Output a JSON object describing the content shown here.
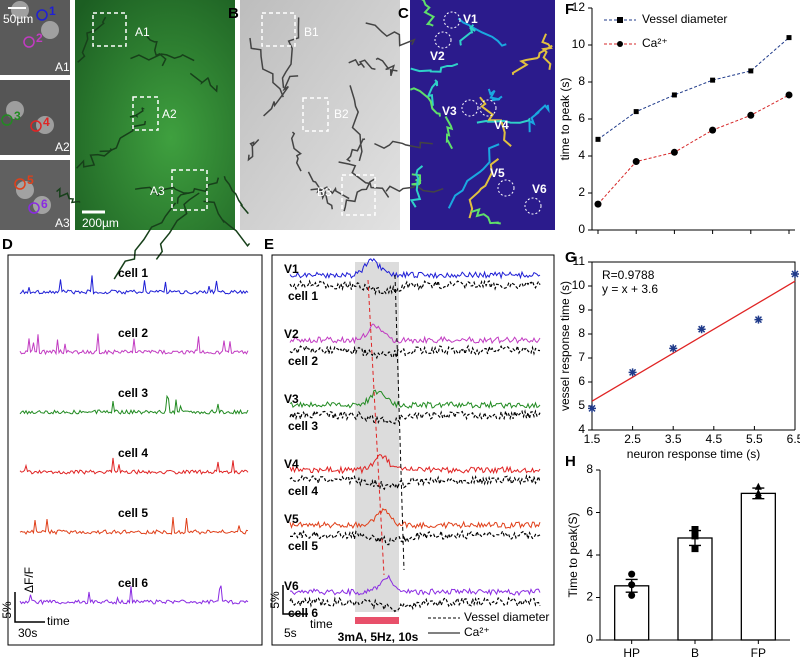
{
  "panel_labels": [
    "B",
    "C",
    "D",
    "E",
    "F",
    "G",
    "H"
  ],
  "images": {
    "inset_scale": "50µm",
    "insets": [
      {
        "label": "A1",
        "cells": [
          "1",
          "2"
        ]
      },
      {
        "label": "A2",
        "cells": [
          "3",
          "4"
        ]
      },
      {
        "label": "A3",
        "cells": [
          "5",
          "6"
        ]
      }
    ],
    "regions_a": [
      "A1",
      "A2",
      "A3"
    ],
    "scale_a": "200µm",
    "regions_b": [
      "B1",
      "B2",
      "B3"
    ],
    "vessels": [
      "V1",
      "V2",
      "V3",
      "V4",
      "V5",
      "V6"
    ]
  },
  "traces_d": {
    "cells": [
      "cell 1",
      "cell 2",
      "cell 3",
      "cell 4",
      "cell 5",
      "cell 6"
    ],
    "colors": [
      "#1f1fd6",
      "#c23cc2",
      "#228b22",
      "#e02424",
      "#e0401a",
      "#8a2be2"
    ],
    "scale_y": "5%",
    "scale_y_unit": "ΔF/F",
    "scale_x": "30s",
    "scale_x_label": "time"
  },
  "traces_e": {
    "vessels": [
      "V1",
      "V2",
      "V3",
      "V4",
      "V5",
      "V6"
    ],
    "cells": [
      "cell 1",
      "cell 2",
      "cell 3",
      "cell 4",
      "cell 5",
      "cell 6"
    ],
    "scale_y": "5%",
    "scale_x": "5s",
    "scale_x_label": "time",
    "stimulus": "3mA, 5Hz, 10s",
    "legend": [
      "Vessel diameter",
      "Ca²⁺"
    ]
  },
  "chart_data": [
    {
      "type": "line",
      "ylabel": "time to peak (s)",
      "categories": [
        null,
        null,
        null,
        null,
        null,
        null
      ],
      "series": [
        {
          "name": "Vessel diameter",
          "color": "#1f3a8a",
          "marker": "square",
          "values": [
            4.9,
            6.4,
            7.3,
            8.1,
            8.6,
            10.4
          ]
        },
        {
          "name": "Ca²⁺",
          "color": "#d62728",
          "marker": "circle",
          "values": [
            1.4,
            3.7,
            4.2,
            5.4,
            6.2,
            7.3
          ]
        }
      ],
      "ylim": [
        0,
        12
      ],
      "yticks": [
        0,
        2,
        4,
        6,
        8,
        10,
        12
      ],
      "legend": "upper left"
    },
    {
      "type": "scatter",
      "xlabel": "neuron response time (s)",
      "ylabel": "vessel response time (s)",
      "x": [
        1.5,
        2.5,
        3.5,
        4.2,
        5.6,
        6.5
      ],
      "values": [
        4.9,
        6.4,
        7.4,
        8.2,
        8.6,
        10.5
      ],
      "color": "#1f3a8a",
      "fit_line": {
        "x": [
          1.5,
          6.5
        ],
        "y": [
          5.2,
          10.2
        ],
        "color": "#e02424"
      },
      "annotations": [
        "R=0.9788",
        "y = x + 3.6"
      ],
      "xlim": [
        1.5,
        6.5
      ],
      "xticks": [
        1.5,
        2.5,
        3.5,
        4.5,
        5.5,
        6.5
      ],
      "ylim": [
        4,
        11
      ],
      "yticks": [
        4,
        5,
        6,
        7,
        8,
        9,
        10,
        11
      ]
    },
    {
      "type": "bar",
      "ylabel": "Time to peak(S)",
      "categories": [
        "HP",
        "B",
        "FP"
      ],
      "values": [
        2.55,
        4.8,
        6.9
      ],
      "errors": [
        0.3,
        0.35,
        0.25
      ],
      "points": [
        [
          3.1,
          2.6,
          2.1
        ],
        [
          5.2,
          4.9,
          4.3
        ],
        [
          7.2,
          6.9,
          6.8
        ]
      ],
      "markers": [
        "circle",
        "square",
        "triangle"
      ],
      "ylim": [
        0,
        8
      ],
      "yticks": [
        0,
        2,
        4,
        6,
        8
      ]
    }
  ]
}
